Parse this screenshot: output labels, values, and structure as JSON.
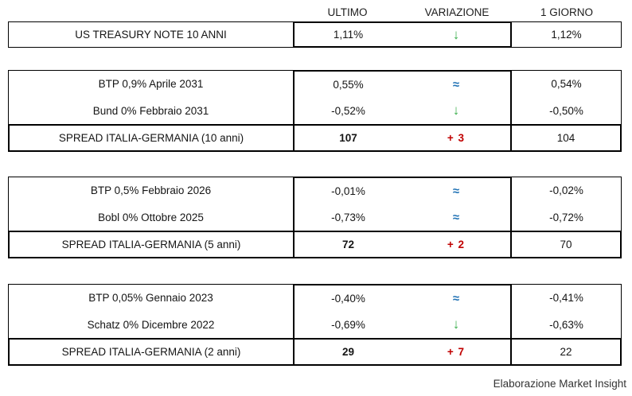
{
  "header": {
    "ultimo": "ULTIMO",
    "variazione": "VARIAZIONE",
    "giorno": "1 GIORNO"
  },
  "colors": {
    "flat_blue": "#2273b5",
    "down_green": "#3aae4c",
    "up_red": "#c00000"
  },
  "blocks": [
    {
      "rows": [
        {
          "label": "US TREASURY NOTE 10 ANNI",
          "ultimo": "1,11%",
          "var_glyph": "↓",
          "var_type": "down",
          "giorno": "1,12%"
        }
      ]
    },
    {
      "rows": [
        {
          "label": "BTP 0,9% Aprile 2031",
          "ultimo": "0,55%",
          "var_glyph": "≈",
          "var_type": "flat",
          "giorno": "0,54%"
        },
        {
          "label": "Bund 0% Febbraio 2031",
          "ultimo": "-0,52%",
          "var_glyph": "↓",
          "var_type": "down",
          "giorno": "-0,50%"
        }
      ],
      "spread": {
        "label": "SPREAD ITALIA-GERMANIA (10 anni)",
        "ultimo": "107",
        "variazione": "+ 3",
        "var_type": "up",
        "giorno": "104"
      }
    },
    {
      "rows": [
        {
          "label": "BTP 0,5% Febbraio 2026",
          "ultimo": "-0,01%",
          "var_glyph": "≈",
          "var_type": "flat",
          "giorno": "-0,02%"
        },
        {
          "label": "Bobl 0% Ottobre 2025",
          "ultimo": "-0,73%",
          "var_glyph": "≈",
          "var_type": "flat",
          "giorno": "-0,72%"
        }
      ],
      "spread": {
        "label": "SPREAD ITALIA-GERMANIA (5 anni)",
        "ultimo": "72",
        "variazione": "+ 2",
        "var_type": "up",
        "giorno": "70"
      }
    },
    {
      "rows": [
        {
          "label": "BTP 0,05% Gennaio 2023",
          "ultimo": "-0,40%",
          "var_glyph": "≈",
          "var_type": "flat",
          "giorno": "-0,41%"
        },
        {
          "label": "Schatz 0% Dicembre 2022",
          "ultimo": "-0,69%",
          "var_glyph": "↓",
          "var_type": "down",
          "giorno": "-0,63%"
        }
      ],
      "spread": {
        "label": "SPREAD ITALIA-GERMANIA (2 anni)",
        "ultimo": "29",
        "variazione": "+ 7",
        "var_type": "up",
        "giorno": "22"
      }
    }
  ],
  "footer": {
    "credit": "Elaborazione Market Insight"
  }
}
